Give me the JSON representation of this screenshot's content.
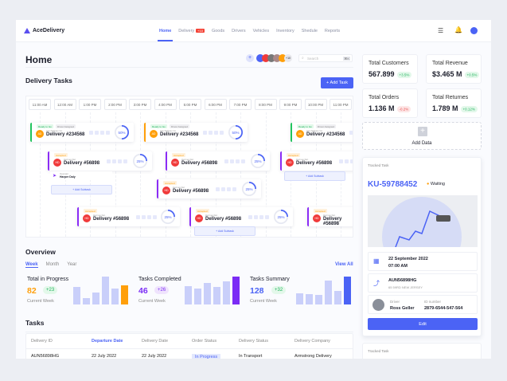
{
  "nav": {
    "brand": "AceDelivery",
    "items": [
      {
        "label": "Home",
        "active": true
      },
      {
        "label": "Delivery",
        "badge": "+10"
      },
      {
        "label": "Goods"
      },
      {
        "label": "Drivers"
      },
      {
        "label": "Vehicles"
      },
      {
        "label": "Inventory"
      },
      {
        "label": "Shedule"
      },
      {
        "label": "Reports"
      }
    ]
  },
  "header": {
    "title": "Home",
    "avatars_more": "+10",
    "search_placeholder": "Search",
    "search_shortcut": "⌘K"
  },
  "tasks_section": {
    "title": "Delivery Tasks",
    "add_label": "+ Add Task",
    "times": [
      "11:00 AM",
      "12:00 AM",
      "1:00 PM",
      "2:00 PM",
      "3:00 PM",
      "4:00 PM",
      "5:00 PM",
      "6:00 PM",
      "7:00 PM",
      "8:00 PM",
      "9:00 PM",
      "10:00 PM",
      "11:00 PM"
    ],
    "cards": [
      {
        "tag": "Ready to Go",
        "tag2": "Driver Assigned",
        "name": "Ace Delivery Co.",
        "title": "Delivery #234568",
        "initials": "AD",
        "percent": "50%",
        "color": "#ff9f0a",
        "bar": "#22c55e"
      },
      {
        "tag": "Ready to Go",
        "tag2": "Driver Assigned",
        "name": "Ace Delivery Co.",
        "title": "Delivery #234568",
        "initials": "AD",
        "percent": "50%",
        "color": "#ff9f0a",
        "bar": "#ff9f0a"
      },
      {
        "tag": "Ready to Go",
        "tag2": "Driver Assigned",
        "name": "Ace Delivery Co.",
        "title": "Delivery #234568",
        "initials": "AD",
        "percent": "",
        "color": "#ff9f0a",
        "bar": "#22c55e"
      },
      {
        "tag": "Accepted",
        "name": "Hermes Del.",
        "title": "Delivery #56898",
        "initials": "HD",
        "percent": "25%",
        "color": "#f03a3a",
        "bar": "#8b2cf5"
      },
      {
        "tag": "Accepted",
        "name": "Hermes Del.",
        "title": "Delivery #56898",
        "initials": "HD",
        "percent": "25%",
        "color": "#f03a3a",
        "bar": "#8b2cf5"
      },
      {
        "tag": "Accepted",
        "name": "Hermes Del.",
        "title": "Delivery #56898",
        "initials": "HD",
        "percent": "",
        "color": "#f03a3a",
        "bar": "#8b2cf5"
      },
      {
        "tag": "Accepted",
        "name": "Hermes Del.",
        "title": "Delivery #56898",
        "initials": "HD",
        "percent": "25%",
        "color": "#f03a3a",
        "bar": "#8b2cf5"
      },
      {
        "tag": "Accepted",
        "name": "Hermes Del.",
        "title": "Delivery #56898",
        "initials": "HD",
        "percent": "25%",
        "color": "#f03a3a",
        "bar": "#8b2cf5"
      },
      {
        "tag": "Accepted",
        "name": "Hermes Del.",
        "title": "Delivery #56898",
        "initials": "HD",
        "percent": "25%",
        "color": "#f03a3a",
        "bar": "#8b2cf5"
      },
      {
        "tag": "Accepted",
        "name": "Hermes Del.",
        "title": "Delivery #56898",
        "initials": "HD",
        "percent": "",
        "color": "#f03a3a",
        "bar": "#8b2cf5"
      }
    ],
    "subtask": {
      "role": "Operator",
      "name": "Harper Daly"
    },
    "add_subtask": "+ Add Subtask"
  },
  "overview": {
    "title": "Overview",
    "tabs": [
      "Week",
      "Month",
      "Year"
    ],
    "view_all": "View All",
    "metrics": [
      {
        "title": "Total in Progress",
        "value": "82",
        "delta": "+23",
        "sub": "Current Week",
        "color": "#ff9f0a",
        "pillbg": "#e3f8ea",
        "pillfg": "#22b35e",
        "bars": [
          62,
          22,
          42,
          100,
          58,
          70
        ]
      },
      {
        "title": "Tasks Completed",
        "value": "46",
        "delta": "+26",
        "sub": "Current Week",
        "color": "#7b2cf5",
        "pillbg": "#efe3fd",
        "pillfg": "#7b2cf5",
        "bars": [
          65,
          58,
          78,
          63,
          84,
          100
        ]
      },
      {
        "title": "Tasks Summary",
        "value": "128",
        "delta": "+32",
        "sub": "Current Week",
        "color": "#4b63f5",
        "pillbg": "#e3f8ea",
        "pillfg": "#22b35e",
        "bars": [
          40,
          36,
          33,
          86,
          48,
          100
        ]
      }
    ]
  },
  "tasks_table": {
    "title": "Tasks",
    "columns": [
      "Delivery ID",
      "Departure Date",
      "Delivery Date",
      "Order Status",
      "Delivery Status",
      "Delivery Company"
    ],
    "rows": [
      [
        "AUN56898HG",
        "22 July 2022",
        "22 July 2022",
        "In Progress",
        "In Transport",
        "Armstrong Delivery"
      ]
    ]
  },
  "stats": [
    {
      "title": "Total Customers",
      "value": "567.899",
      "delta": "+3.5%",
      "trend": "up"
    },
    {
      "title": "Total Revenue",
      "value": "$3.465 M",
      "delta": "+0.5%",
      "trend": "up"
    },
    {
      "title": "Total Orders",
      "value": "1.136 M",
      "delta": "-0.2%",
      "trend": "down"
    },
    {
      "title": "Total Returnes",
      "value": "1.789 M",
      "delta": "+0.12%",
      "trend": "up"
    }
  ],
  "add_data": "Add Data",
  "tracked": {
    "header": "Tracked Task",
    "id": "KU-59788452",
    "status": "Waiting",
    "date": "22 September 2022",
    "time": "07:00 AM",
    "code": "AUN56898HG",
    "address": "65 59RD NEW JERSEY",
    "driver_label": "Driver",
    "driver": "Ross Geller",
    "idnum_label": "ID number",
    "idnum": "2879-6544-547-564",
    "edit": "Edit"
  },
  "tracked2": {
    "header": "Tracked Task"
  }
}
